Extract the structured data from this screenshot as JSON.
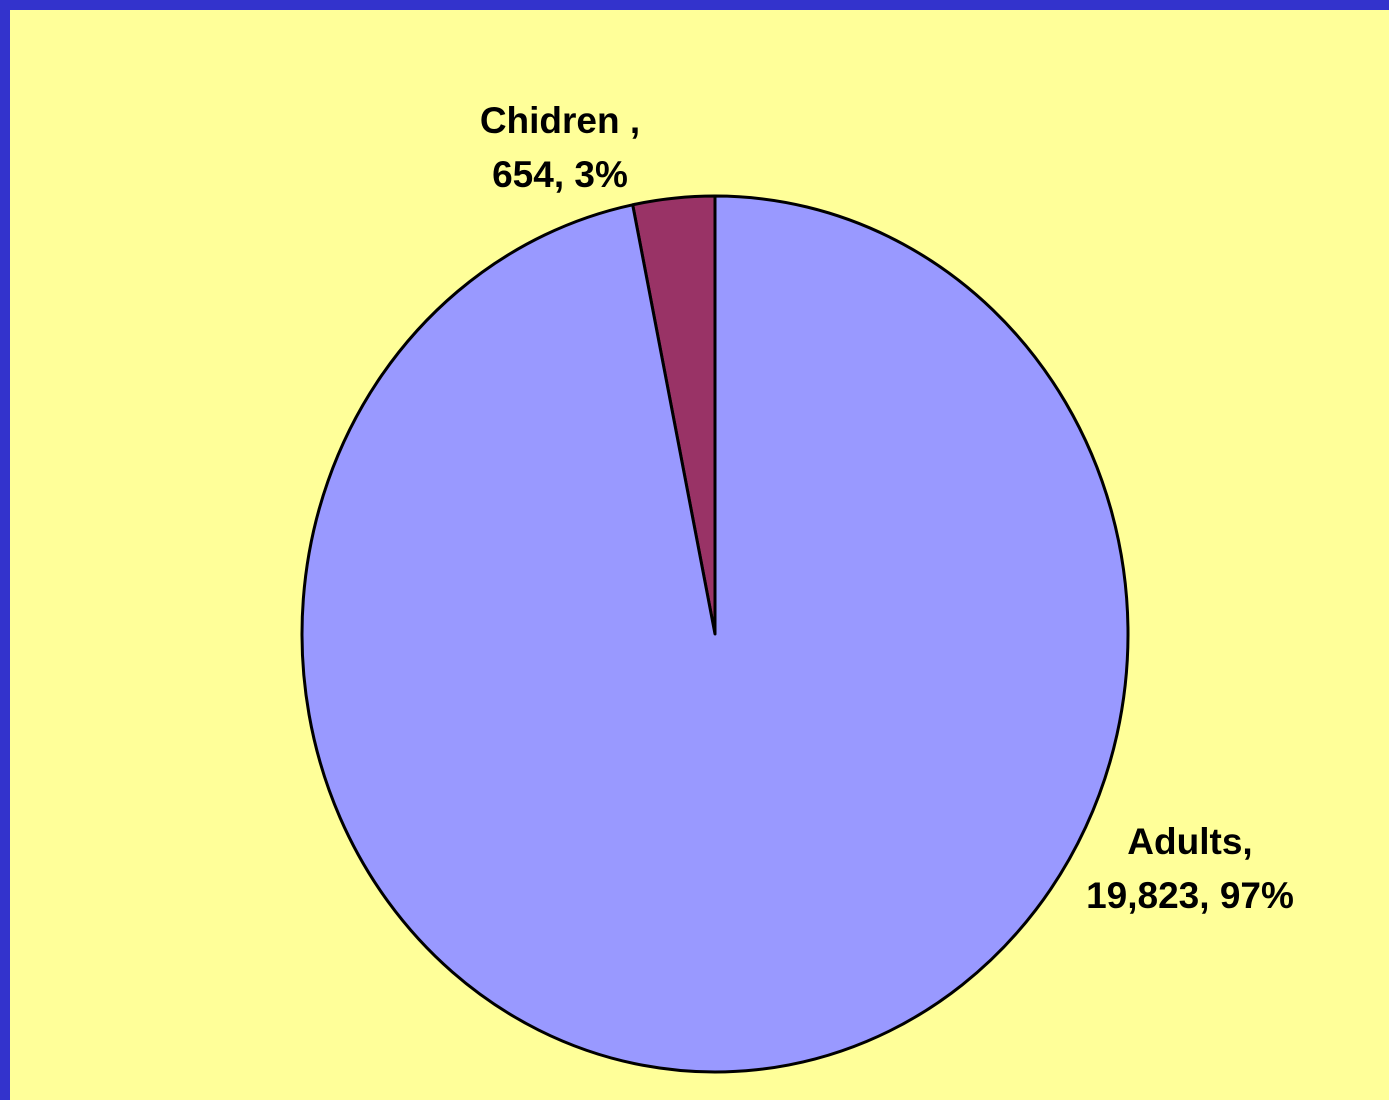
{
  "colors": {
    "frame": "#3333CC",
    "plot_background": "#FFFF99",
    "outline": "#000000"
  },
  "chart_data": {
    "type": "pie",
    "title": "",
    "start_angle_deg": 0,
    "direction": "counterclockwise",
    "slices": [
      {
        "label": "Chidren ,",
        "value": 654,
        "value_text": "654, 3%",
        "percent": 3,
        "color": "#993366"
      },
      {
        "label": "Adults,",
        "value": 19823,
        "value_text": "19,823, 97%",
        "percent": 97,
        "color": "#9999FF"
      }
    ]
  }
}
